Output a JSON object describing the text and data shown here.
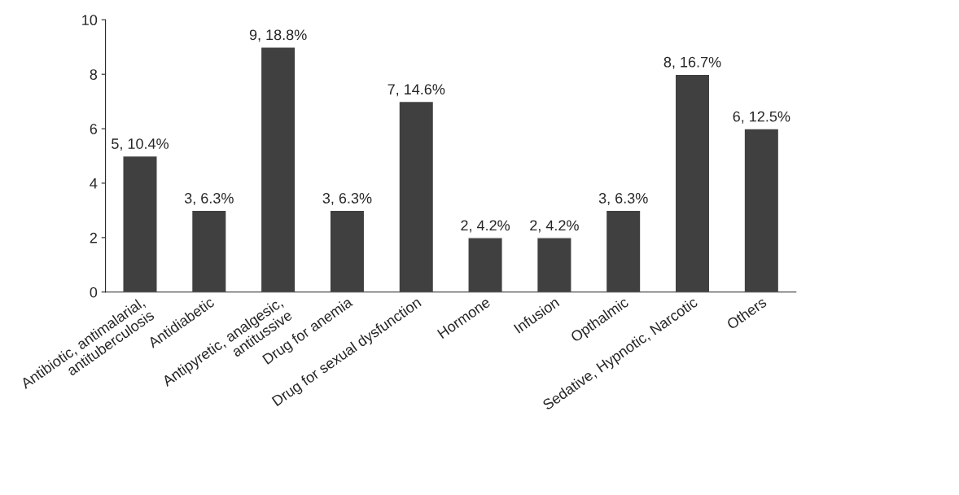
{
  "chart_data": {
    "type": "bar",
    "categories": [
      "Antibiotic, antimalarial,\nantituberculosis",
      "Antidiabetic",
      "Antipyretic, analgesic,\nantitussive",
      "Drug for anemia",
      "Drug for sexual dysfunction",
      "Hormone",
      "Infusion",
      "Opthalmic",
      "Sedative, Hypnotic, Narcotic",
      "Others"
    ],
    "values": [
      5,
      3,
      9,
      3,
      7,
      2,
      2,
      3,
      8,
      6
    ],
    "value_labels": [
      "5, 10.4%",
      "3, 6.3%",
      "9, 18.8%",
      "3, 6.3%",
      "7, 14.6%",
      "2, 4.2%",
      "2, 4.2%",
      "3, 6.3%",
      "8, 16.7%",
      "6, 12.5%"
    ],
    "color": "#404040",
    "ylim": [
      0,
      10
    ],
    "yticks": [
      0,
      2,
      4,
      6,
      8,
      10
    ],
    "grid": false
  }
}
